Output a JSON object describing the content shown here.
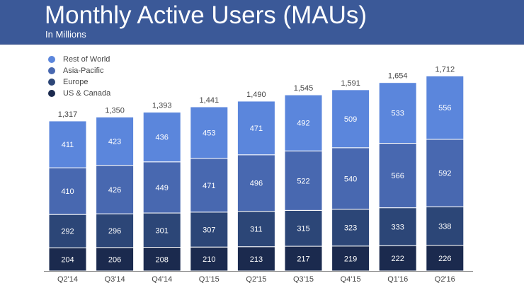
{
  "header": {
    "title": "Monthly Active Users (MAUs)",
    "subtitle": "In Millions"
  },
  "chart_data": {
    "type": "bar",
    "stacked": true,
    "title": "Monthly Active Users (MAUs)",
    "subtitle": "In Millions",
    "categories": [
      "Q2'14",
      "Q3'14",
      "Q4'14",
      "Q1'15",
      "Q2'15",
      "Q3'15",
      "Q4'15",
      "Q1'16",
      "Q2'16"
    ],
    "totals": [
      "1,317",
      "1,350",
      "1,393",
      "1,441",
      "1,490",
      "1,545",
      "1,591",
      "1,654",
      "1,712"
    ],
    "series": [
      {
        "name": "US & Canada",
        "color": "#1b2a4e",
        "values": [
          204,
          206,
          208,
          210,
          213,
          217,
          219,
          222,
          226
        ]
      },
      {
        "name": "Europe",
        "color": "#2c4677",
        "values": [
          292,
          296,
          301,
          307,
          311,
          315,
          323,
          333,
          338
        ]
      },
      {
        "name": "Asia-Pacific",
        "color": "#4868b0",
        "values": [
          410,
          426,
          449,
          471,
          496,
          522,
          540,
          566,
          592
        ]
      },
      {
        "name": "Rest of World",
        "color": "#5b86dc",
        "values": [
          411,
          423,
          436,
          453,
          471,
          492,
          509,
          533,
          556
        ]
      }
    ],
    "legend_order": [
      "Rest of World",
      "Asia-Pacific",
      "Europe",
      "US & Canada"
    ],
    "legend_placement": "top-left",
    "ylim": [
      0,
      1712
    ],
    "grid": false
  }
}
